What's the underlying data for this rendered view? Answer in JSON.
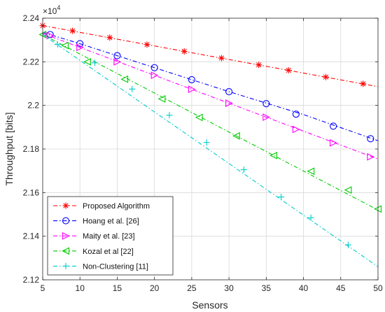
{
  "chart_data": {
    "type": "line",
    "title": "",
    "xlabel": "Sensors",
    "ylabel": "Throughput [bits]",
    "y_multiplier_label": "×10",
    "y_multiplier_exponent": "4",
    "xlim": [
      5,
      50
    ],
    "ylim": [
      2.12,
      2.24
    ],
    "y_scale": 10000,
    "grid": true,
    "legend_position": "bottom-left",
    "x_ticks": [
      5,
      10,
      15,
      20,
      25,
      30,
      35,
      40,
      45,
      50
    ],
    "x_tick_labels": [
      "5",
      "10",
      "15",
      "20",
      "25",
      "30",
      "35",
      "40",
      "45",
      "50"
    ],
    "y_ticks": [
      2.12,
      2.14,
      2.16,
      2.18,
      2.2,
      2.22,
      2.24
    ],
    "y_tick_labels": [
      "2.12",
      "2.14",
      "2.16",
      "2.18",
      "2.2",
      "2.22",
      "2.24"
    ],
    "series": [
      {
        "name": "Proposed Algorithm",
        "color": "#ff0000",
        "marker": "asterisk",
        "line": [
          [
            5,
            2.2366
          ],
          [
            50,
            2.2086
          ]
        ],
        "marker_x": [
          5,
          9,
          14,
          19,
          24,
          29,
          34,
          38,
          43,
          48
        ],
        "marker_y": [
          2.2366,
          2.2342,
          2.2311,
          2.2279,
          2.2248,
          2.2217,
          2.2186,
          2.2161,
          2.213,
          2.2099
        ]
      },
      {
        "name": "Hoang et al. [26]",
        "color": "#0000ff",
        "marker": "circle",
        "line": [
          [
            5,
            2.2335
          ],
          [
            10,
            2.2283
          ],
          [
            20,
            2.2173
          ],
          [
            30,
            2.2063
          ],
          [
            40,
            2.1958
          ],
          [
            50,
            2.1838
          ]
        ],
        "marker_x": [
          6,
          10,
          15,
          20,
          25,
          30,
          35,
          39,
          44,
          49
        ],
        "marker_y": [
          2.2325,
          2.2283,
          2.2228,
          2.2173,
          2.2118,
          2.2063,
          2.2008,
          2.196,
          2.1905,
          2.1847
        ]
      },
      {
        "name": "Maity et al. [23]",
        "color": "#ff00ff",
        "marker": "triangle-right",
        "line": [
          [
            5,
            2.233
          ],
          [
            50,
            2.1754
          ]
        ],
        "marker_x": [
          6,
          10,
          15,
          20,
          25,
          30,
          35,
          39,
          44,
          49
        ],
        "marker_y": [
          2.232,
          2.2266,
          2.22,
          2.2138,
          2.2074,
          2.201,
          2.1946,
          2.189,
          2.1828,
          2.1764
        ]
      },
      {
        "name": "Kozal et al [22]",
        "color": "#00cc00",
        "marker": "triangle-left",
        "line": [
          [
            5,
            2.2325
          ],
          [
            50,
            2.152
          ]
        ],
        "marker_x": [
          5,
          8,
          11,
          16,
          21,
          26,
          31,
          36,
          41,
          46,
          50
        ],
        "marker_y": [
          2.2325,
          2.2275,
          2.22,
          2.212,
          2.203,
          2.1945,
          2.186,
          2.177,
          2.1698,
          2.1612,
          2.1525
        ]
      },
      {
        "name": "Non-Clustering [11]",
        "color": "#00cccc",
        "marker": "plus",
        "line": [
          [
            5,
            2.2325
          ],
          [
            50,
            2.126
          ]
        ],
        "marker_x": [
          7,
          12,
          17,
          22,
          27,
          32,
          37,
          41,
          46
        ],
        "marker_y": [
          2.228,
          2.2195,
          2.2075,
          2.1955,
          2.183,
          2.1705,
          2.158,
          2.1485,
          2.136
        ]
      }
    ]
  }
}
